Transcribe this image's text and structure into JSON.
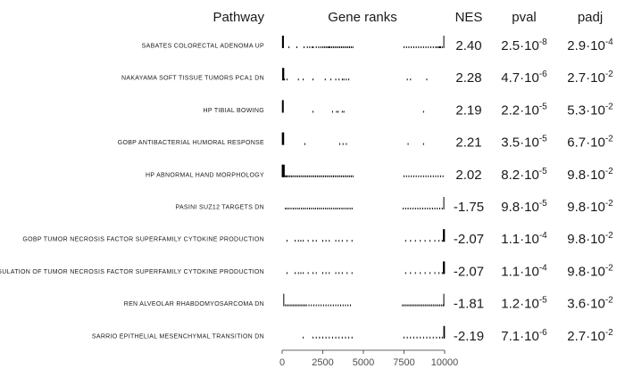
{
  "chart_data": {
    "type": "table",
    "headers": {
      "pathway": "Pathway",
      "gene_ranks": "Gene ranks",
      "nes": "NES",
      "pval": "pval",
      "padj": "padj"
    },
    "xlim": [
      0,
      10000
    ],
    "ticks": [
      0,
      2500,
      5000,
      7500,
      10000
    ],
    "tick_labels": [
      "0",
      "2500",
      "5000",
      "7500",
      "10000"
    ],
    "rows": [
      {
        "pathway": "SABATES COLORECTAL ADENOMA UP",
        "nes": "2.40",
        "pval": {
          "mantissa": "2.5",
          "exponent": "-8"
        },
        "padj": {
          "mantissa": "2.9",
          "exponent": "-4"
        },
        "ranks": [
          20,
          35,
          55,
          80,
          420,
          900,
          1350,
          1550,
          1700,
          1850,
          1920,
          2100,
          2250,
          2380,
          2500,
          2600,
          2700,
          2800,
          2880,
          2950,
          3050,
          3150,
          3250,
          3350,
          3450,
          3550,
          3650,
          3750,
          3850,
          3950,
          4050,
          4150,
          4250,
          4350,
          7500,
          7650,
          7800,
          7950,
          8100,
          8250,
          8400,
          8550,
          8700,
          8850,
          9000,
          9150,
          9300,
          9450,
          9550,
          9650,
          9700,
          9750,
          9850,
          9950
        ]
      },
      {
        "pathway": "NAKAYAMA SOFT TISSUE TUMORS PCA1 DN",
        "nes": "2.28",
        "pval": {
          "mantissa": "4.7",
          "exponent": "-6"
        },
        "padj": {
          "mantissa": "2.7",
          "exponent": "-2"
        },
        "ranks": [
          30,
          60,
          100,
          150,
          300,
          1000,
          1300,
          1900,
          2650,
          3000,
          3300,
          3500,
          3700,
          3800,
          3950,
          4100,
          7700,
          7900,
          8900
        ]
      },
      {
        "pathway": "HP TIBIAL BOWING",
        "nes": "2.19",
        "pval": {
          "mantissa": "2.2",
          "exponent": "-5"
        },
        "padj": {
          "mantissa": "5.3",
          "exponent": "-2"
        },
        "ranks": [
          15,
          40,
          70,
          1900,
          3100,
          3350,
          3450,
          3700,
          3800,
          8700
        ]
      },
      {
        "pathway": "GOBP ANTIBACTERIAL HUMORAL RESPONSE",
        "nes": "2.21",
        "pval": {
          "mantissa": "3.5",
          "exponent": "-5"
        },
        "padj": {
          "mantissa": "6.7",
          "exponent": "-2"
        },
        "ranks": [
          10,
          35,
          60,
          95,
          1400,
          3550,
          3750,
          3950,
          7750,
          8700
        ]
      },
      {
        "pathway": "HP ABNORMAL HAND MORPHOLOGY",
        "nes": "2.02",
        "pval": {
          "mantissa": "8.2",
          "exponent": "-5"
        },
        "padj": {
          "mantissa": "9.8",
          "exponent": "-2"
        },
        "ranks": [
          5,
          20,
          40,
          60,
          90,
          130,
          180,
          240,
          310,
          390,
          480,
          570,
          660,
          760,
          860,
          960,
          1060,
          1160,
          1260,
          1360,
          1460,
          1560,
          1660,
          1760,
          1860,
          1960,
          2060,
          2160,
          2260,
          2360,
          2460,
          2560,
          2660,
          2760,
          2860,
          2960,
          3060,
          3160,
          3260,
          3360,
          3460,
          3560,
          3660,
          3760,
          3860,
          3960,
          4060,
          4160,
          4260,
          4360,
          7500,
          7650,
          7800,
          7950,
          8100,
          8250,
          8400,
          8550,
          8700,
          8850,
          9000,
          9150,
          9300,
          9450,
          9600,
          9750,
          9900
        ]
      },
      {
        "pathway": "PASINI SUZ12 TARGETS DN",
        "nes": "-1.75",
        "pval": {
          "mantissa": "9.8",
          "exponent": "-5"
        },
        "padj": {
          "mantissa": "9.8",
          "exponent": "-2"
        },
        "ranks": [
          200,
          300,
          420,
          550,
          680,
          800,
          930,
          1050,
          1180,
          1300,
          1420,
          1550,
          1680,
          1800,
          1930,
          2050,
          2180,
          2300,
          2420,
          2550,
          2680,
          2800,
          2930,
          3050,
          3180,
          3300,
          3420,
          3550,
          3680,
          3800,
          3930,
          4050,
          4180,
          4300,
          7450,
          7600,
          7750,
          7900,
          8050,
          8200,
          8350,
          8500,
          8650,
          8800,
          8950,
          9100,
          9250,
          9400,
          9550,
          9700,
          9850,
          9950
        ]
      },
      {
        "pathway": "GOBP TUMOR NECROSIS FACTOR SUPERFAMILY CYTOKINE PRODUCTION",
        "nes": "-2.07",
        "pval": {
          "mantissa": "1.1",
          "exponent": "-4"
        },
        "padj": {
          "mantissa": "9.8",
          "exponent": "-2"
        },
        "ranks": [
          300,
          800,
          1000,
          1150,
          1300,
          1600,
          1900,
          2100,
          2500,
          2700,
          2900,
          3300,
          3500,
          3700,
          4000,
          4300,
          7600,
          7900,
          8200,
          8500,
          8800,
          9100,
          9400,
          9650,
          9850,
          9920,
          9960,
          9990
        ]
      },
      {
        "pathway": "REGULATION OF TUMOR NECROSIS FACTOR SUPERFAMILY CYTOKINE PRODUCTION",
        "nes": "-2.07",
        "pval": {
          "mantissa": "1.1",
          "exponent": "-4"
        },
        "padj": {
          "mantissa": "9.8",
          "exponent": "-2"
        },
        "ranks": [
          300,
          800,
          1000,
          1150,
          1300,
          1600,
          1900,
          2100,
          2500,
          2700,
          2900,
          3300,
          3500,
          3700,
          4000,
          4300,
          7600,
          7900,
          8200,
          8500,
          8800,
          9100,
          9400,
          9650,
          9850,
          9920,
          9960,
          9990
        ]
      },
      {
        "pathway": "REN ALVEOLAR RHABDOMYOSARCOMA DN",
        "nes": "-1.81",
        "pval": {
          "mantissa": "1.2",
          "exponent": "-5"
        },
        "padj": {
          "mantissa": "3.6",
          "exponent": "-2"
        },
        "ranks": [
          100,
          200,
          300,
          400,
          500,
          600,
          700,
          800,
          900,
          1000,
          1100,
          1200,
          1300,
          1400,
          1500,
          1650,
          1800,
          1950,
          2100,
          2250,
          2400,
          2550,
          2700,
          2850,
          3000,
          3150,
          3300,
          3450,
          3600,
          3750,
          3900,
          4050,
          4200,
          7400,
          7500,
          7600,
          7700,
          7800,
          7900,
          8000,
          8100,
          8200,
          8300,
          8400,
          8500,
          8600,
          8700,
          8800,
          8900,
          9000,
          9100,
          9200,
          9300,
          9400,
          9500,
          9600,
          9700,
          9800,
          9900,
          9950
        ]
      },
      {
        "pathway": "SARRIO EPITHELIAL MESENCHYMAL TRANSITION DN",
        "nes": "-2.19",
        "pval": {
          "mantissa": "7.1",
          "exponent": "-6"
        },
        "padj": {
          "mantissa": "2.7",
          "exponent": "-2"
        },
        "ranks": [
          1300,
          1900,
          2100,
          2300,
          2500,
          2700,
          2900,
          3100,
          3300,
          3500,
          3700,
          3900,
          4100,
          4300,
          7500,
          7700,
          7900,
          8100,
          8300,
          8500,
          8700,
          8900,
          9100,
          9300,
          9500,
          9700,
          9850,
          9950,
          9990
        ]
      }
    ]
  }
}
